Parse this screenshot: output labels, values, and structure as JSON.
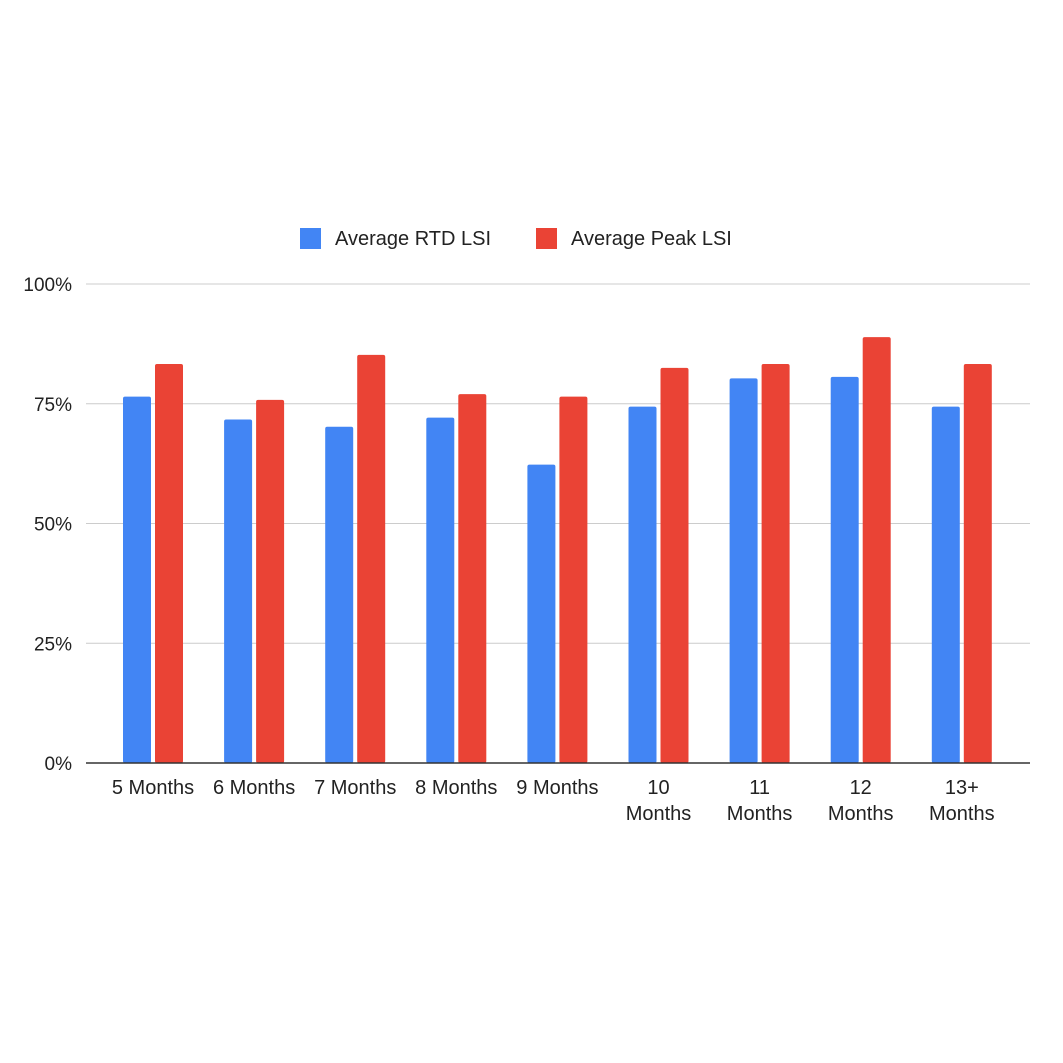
{
  "chart_data": {
    "type": "bar",
    "title": "",
    "xlabel": "",
    "ylabel": "",
    "categories": [
      [
        "5 Months"
      ],
      [
        "6 Months"
      ],
      [
        "7 Months"
      ],
      [
        "8 Months"
      ],
      [
        "9 Months"
      ],
      [
        "10",
        "Months"
      ],
      [
        "11",
        "Months"
      ],
      [
        "12",
        "Months"
      ],
      [
        "13+",
        "Months"
      ]
    ],
    "series": [
      {
        "name": "Average RTD LSI",
        "color": "#4285F4",
        "values": [
          76.5,
          71.7,
          70.2,
          72.1,
          62.3,
          74.4,
          80.3,
          80.6,
          74.4
        ]
      },
      {
        "name": "Average Peak LSI",
        "color": "#EA4335",
        "values": [
          83.3,
          75.8,
          85.2,
          77.0,
          76.5,
          82.5,
          83.3,
          88.9,
          83.3
        ]
      }
    ],
    "ylim": [
      0,
      100
    ],
    "yticks": [
      0,
      25,
      50,
      75,
      100
    ],
    "ytick_labels": [
      "0%",
      "25%",
      "50%",
      "75%",
      "100%"
    ],
    "grid": true,
    "legend_position": "top-center"
  }
}
